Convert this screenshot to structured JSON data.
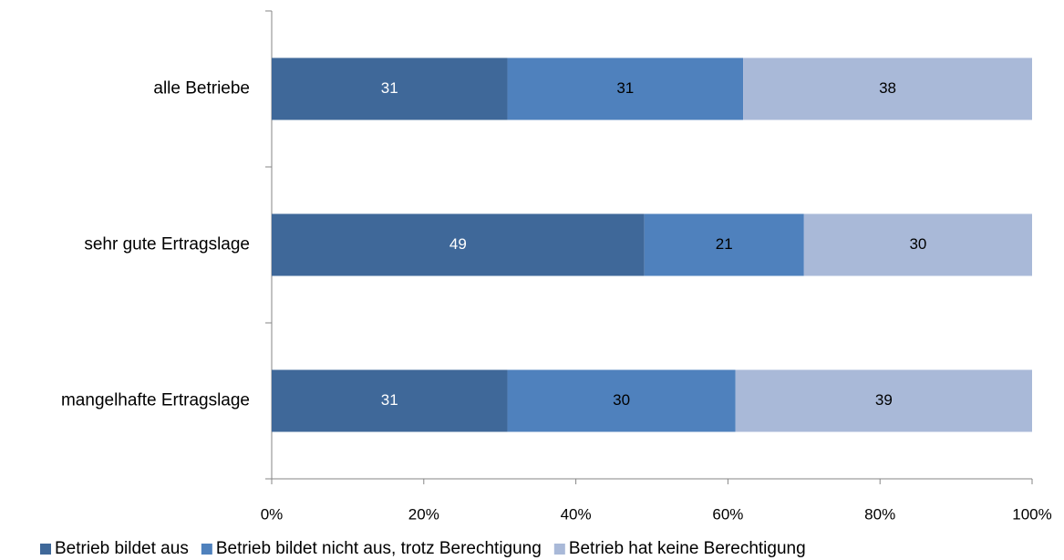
{
  "chart_data": {
    "type": "stacked_barh",
    "categories": [
      "alle Betriebe",
      "sehr gute Ertragslage",
      "mangelhafte Ertragslage"
    ],
    "series": [
      {
        "name": "Betrieb bildet aus",
        "color": "#3f6899",
        "values": [
          31,
          49,
          31
        ]
      },
      {
        "name": "Betrieb bildet nicht aus, trotz Berechtigung",
        "color": "#4f81bd",
        "values": [
          31,
          21,
          30
        ]
      },
      {
        "name": "Betrieb hat keine Berechtigung",
        "color": "#a9b9d8",
        "values": [
          38,
          30,
          39
        ]
      }
    ],
    "xlim": [
      0,
      100
    ],
    "xticks": [
      {
        "value": 0,
        "label": "0%"
      },
      {
        "value": 20,
        "label": "20%"
      },
      {
        "value": 40,
        "label": "40%"
      },
      {
        "value": 60,
        "label": "60%"
      },
      {
        "value": 80,
        "label": "80%"
      },
      {
        "value": 100,
        "label": "100%"
      }
    ],
    "legend": "bottom"
  }
}
